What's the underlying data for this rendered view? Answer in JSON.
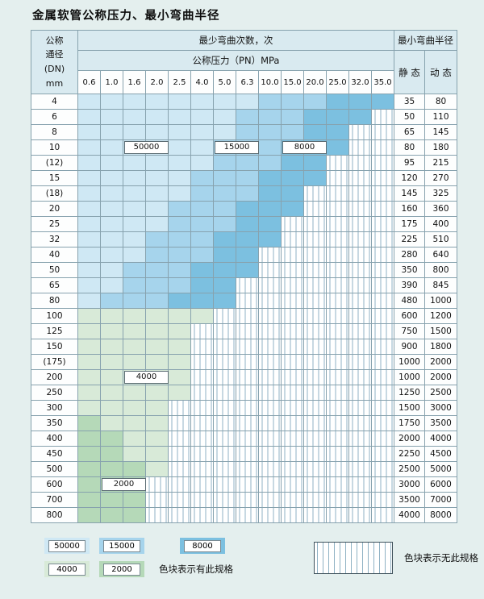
{
  "title": "金属软管公称压力、最小弯曲半径",
  "colors": {
    "page_bg": "#e4efee",
    "header_bg": "#d9eaf0",
    "grid_line": "#87a2ae",
    "border_dark": "#3f525c",
    "blue_50000": "#cfe8f4",
    "blue_15000": "#a6d4ec",
    "blue_8000": "#7cc0e0",
    "green_4000": "#d8ead8",
    "green_2000": "#b5d9b8",
    "hatch_line": "#8fb2c4"
  },
  "table": {
    "header": {
      "dn_label": "公称\n通径\n(DN)\nmm",
      "cycles_label": "最少弯曲次数，次",
      "pressure_label": "公称压力（PN）MPa",
      "pressure_values": [
        "0.6",
        "1.0",
        "1.6",
        "2.0",
        "2.5",
        "4.0",
        "5.0",
        "6.3",
        "10.0",
        "15.0",
        "20.0",
        "25.0",
        "32.0",
        "35.0"
      ],
      "radius_label": "最小弯曲半径",
      "static_label": "静 态",
      "dynamic_label": "动 态"
    },
    "zone_legend_meaning": {
      "a": "50000",
      "b": "15000",
      "c": "8000",
      "g": "4000",
      "d": "2000",
      "x": "no-spec"
    },
    "rows": [
      {
        "dn": "4",
        "cells": "aaaaaaaabbbccc",
        "static": "35",
        "dynamic": "80"
      },
      {
        "dn": "6",
        "cells": "aaaaaaabbbcccx",
        "static": "50",
        "dynamic": "110"
      },
      {
        "dn": "8",
        "cells": "aaaaaaabbbccxx",
        "static": "65",
        "dynamic": "145"
      },
      {
        "dn": "10",
        "cells": "aaaaaabbbcccxx",
        "static": "80",
        "dynamic": "180",
        "labels": [
          {
            "text": "50000",
            "col": 2
          },
          {
            "text": "15000",
            "col": 6
          },
          {
            "text": "8000",
            "col": 9
          }
        ]
      },
      {
        "dn": "(12)",
        "cells": "aaaaaabbbccxxx",
        "static": "95",
        "dynamic": "215"
      },
      {
        "dn": "15",
        "cells": "aaaaabbbcccxxx",
        "static": "120",
        "dynamic": "270"
      },
      {
        "dn": "(18)",
        "cells": "aaaaabbbccxxxx",
        "static": "145",
        "dynamic": "325"
      },
      {
        "dn": "20",
        "cells": "aaaabbbcccxxxx",
        "static": "160",
        "dynamic": "360"
      },
      {
        "dn": "25",
        "cells": "aaaabbbccxxxxx",
        "static": "175",
        "dynamic": "400"
      },
      {
        "dn": "32",
        "cells": "aaabbbcccxxxxx",
        "static": "225",
        "dynamic": "510"
      },
      {
        "dn": "40",
        "cells": "aaabbbccxxxxxx",
        "static": "280",
        "dynamic": "640"
      },
      {
        "dn": "50",
        "cells": "aabbbcccxxxxxx",
        "static": "350",
        "dynamic": "800"
      },
      {
        "dn": "65",
        "cells": "aabbbccxxxxxxx",
        "static": "390",
        "dynamic": "845"
      },
      {
        "dn": "80",
        "cells": "abbbcccxxxxxxx",
        "static": "480",
        "dynamic": "1000"
      },
      {
        "dn": "100",
        "cells": "ggggggxxxxxxxx",
        "static": "600",
        "dynamic": "1200"
      },
      {
        "dn": "125",
        "cells": "gggggxxxxxxxxx",
        "static": "750",
        "dynamic": "1500"
      },
      {
        "dn": "150",
        "cells": "gggggxxxxxxxxx",
        "static": "900",
        "dynamic": "1800"
      },
      {
        "dn": "(175)",
        "cells": "gggggxxxxxxxxx",
        "static": "1000",
        "dynamic": "2000"
      },
      {
        "dn": "200",
        "cells": "gggggxxxxxxxxx",
        "static": "1000",
        "dynamic": "2000",
        "labels": [
          {
            "text": "4000",
            "col": 2
          }
        ]
      },
      {
        "dn": "250",
        "cells": "gggggxxxxxxxxx",
        "static": "1250",
        "dynamic": "2500"
      },
      {
        "dn": "300",
        "cells": "ggggxxxxxxxxxx",
        "static": "1500",
        "dynamic": "3000"
      },
      {
        "dn": "350",
        "cells": "dgggxxxxxxxxxx",
        "static": "1750",
        "dynamic": "3500"
      },
      {
        "dn": "400",
        "cells": "ddggxxxxxxxxxx",
        "static": "2000",
        "dynamic": "4000"
      },
      {
        "dn": "450",
        "cells": "ddggxxxxxxxxxx",
        "static": "2250",
        "dynamic": "4500"
      },
      {
        "dn": "500",
        "cells": "dddgxxxxxxxxxx",
        "static": "2500",
        "dynamic": "5000"
      },
      {
        "dn": "600",
        "cells": "dddxxxxxxxxxxx",
        "static": "3000",
        "dynamic": "6000",
        "labels": [
          {
            "text": "2000",
            "col": 1
          }
        ]
      },
      {
        "dn": "700",
        "cells": "dddxxxxxxxxxxx",
        "static": "3500",
        "dynamic": "7000"
      },
      {
        "dn": "800",
        "cells": "dddxxxxxxxxxxx",
        "static": "4000",
        "dynamic": "8000"
      }
    ]
  },
  "legend": {
    "blue_items": [
      {
        "text": "50000",
        "zone": "a"
      },
      {
        "text": "15000",
        "zone": "b"
      },
      {
        "text": "8000",
        "zone": "c"
      }
    ],
    "green_items": [
      {
        "text": "4000",
        "zone": "g"
      },
      {
        "text": "2000",
        "zone": "d"
      }
    ],
    "has_spec_label": "色块表示有此规格",
    "no_spec_label": "色块表示无此规格"
  }
}
